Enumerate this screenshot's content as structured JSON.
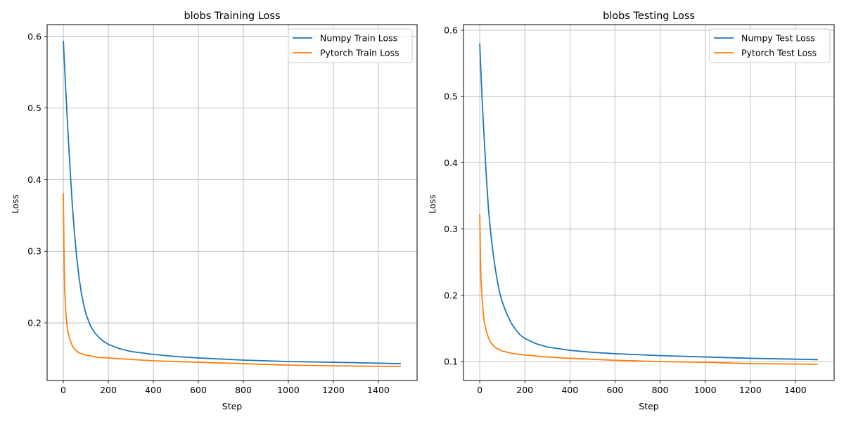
{
  "chart_data": [
    {
      "type": "line",
      "title": "blobs Training Loss",
      "xlabel": "Step",
      "ylabel": "Loss",
      "xlim": [
        -72,
        1572
      ],
      "ylim": [
        0.1195,
        0.6165
      ],
      "xticks": [
        0,
        200,
        400,
        600,
        800,
        1000,
        1200,
        1400
      ],
      "yticks": [
        0.2,
        0.3,
        0.4,
        0.5,
        0.6
      ],
      "grid": true,
      "legend_position": "upper-right",
      "series": [
        {
          "name": "Numpy Train Loss",
          "color": "#1f77b4",
          "x": [
            0,
            10,
            20,
            30,
            40,
            50,
            60,
            70,
            80,
            90,
            100,
            120,
            140,
            160,
            180,
            200,
            250,
            300,
            400,
            500,
            600,
            800,
            1000,
            1200,
            1500
          ],
          "y": [
            0.594,
            0.53,
            0.47,
            0.415,
            0.365,
            0.323,
            0.29,
            0.263,
            0.242,
            0.226,
            0.213,
            0.196,
            0.186,
            0.179,
            0.174,
            0.17,
            0.164,
            0.16,
            0.156,
            0.153,
            0.151,
            0.148,
            0.146,
            0.145,
            0.143
          ]
        },
        {
          "name": "Pytorch Train Loss",
          "color": "#ff7f0e",
          "x": [
            0,
            3,
            6,
            10,
            15,
            20,
            30,
            40,
            50,
            70,
            100,
            150,
            200,
            300,
            400,
            600,
            800,
            1000,
            1200,
            1500
          ],
          "y": [
            0.381,
            0.3,
            0.245,
            0.22,
            0.2,
            0.188,
            0.176,
            0.168,
            0.163,
            0.158,
            0.155,
            0.152,
            0.151,
            0.149,
            0.147,
            0.145,
            0.143,
            0.141,
            0.14,
            0.139
          ]
        }
      ]
    },
    {
      "type": "line",
      "title": "blobs Testing Loss",
      "xlabel": "Step",
      "ylabel": "Loss",
      "xlim": [
        -72,
        1572
      ],
      "ylim": [
        0.0715,
        0.6085
      ],
      "xticks": [
        0,
        200,
        400,
        600,
        800,
        1000,
        1200,
        1400
      ],
      "yticks": [
        0.1,
        0.2,
        0.3,
        0.4,
        0.5,
        0.6
      ],
      "grid": true,
      "legend_position": "upper-right",
      "series": [
        {
          "name": "Numpy Test Loss",
          "color": "#1f77b4",
          "x": [
            0,
            10,
            20,
            30,
            40,
            50,
            60,
            70,
            80,
            90,
            100,
            120,
            140,
            160,
            180,
            200,
            250,
            300,
            400,
            500,
            600,
            800,
            1000,
            1200,
            1500
          ],
          "y": [
            0.58,
            0.5,
            0.435,
            0.375,
            0.325,
            0.29,
            0.262,
            0.238,
            0.218,
            0.202,
            0.19,
            0.172,
            0.158,
            0.148,
            0.14,
            0.135,
            0.127,
            0.122,
            0.117,
            0.114,
            0.112,
            0.109,
            0.107,
            0.105,
            0.103
          ]
        },
        {
          "name": "Pytorch Test Loss",
          "color": "#ff7f0e",
          "x": [
            0,
            3,
            6,
            10,
            15,
            20,
            30,
            40,
            50,
            70,
            100,
            150,
            200,
            300,
            400,
            600,
            800,
            1000,
            1200,
            1500
          ],
          "y": [
            0.322,
            0.26,
            0.22,
            0.198,
            0.175,
            0.16,
            0.145,
            0.135,
            0.128,
            0.121,
            0.116,
            0.112,
            0.11,
            0.107,
            0.105,
            0.102,
            0.1,
            0.099,
            0.097,
            0.096
          ]
        }
      ]
    }
  ]
}
